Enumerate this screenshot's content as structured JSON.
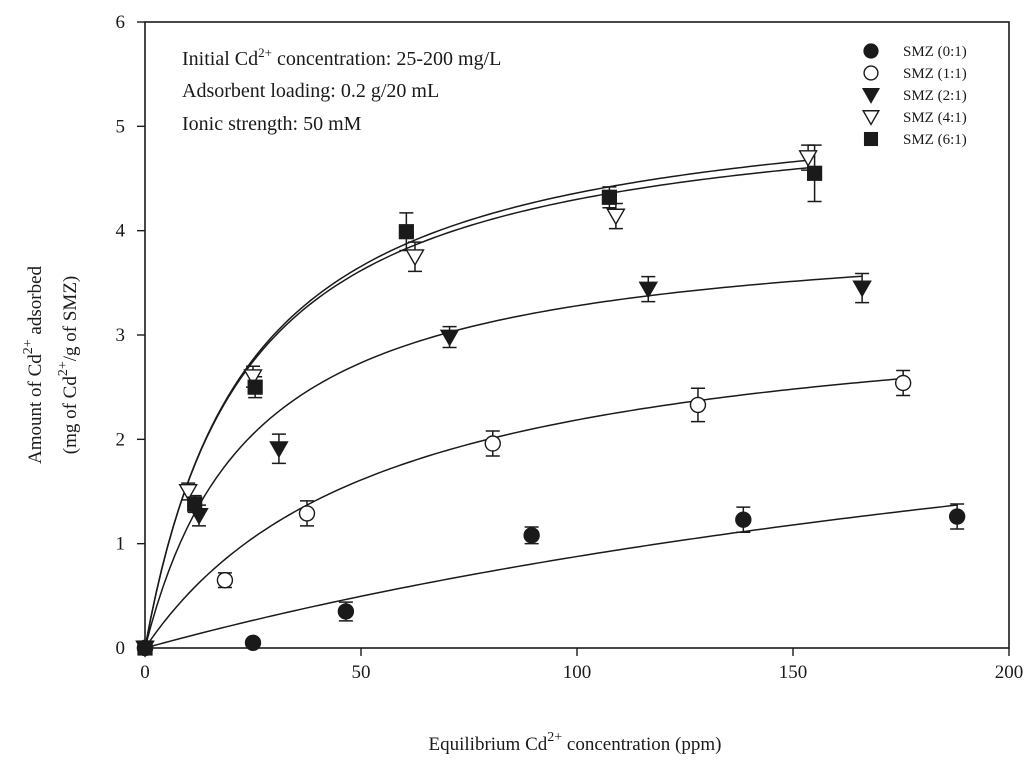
{
  "chart_data": {
    "type": "scatter",
    "xlabel": "Equilibrium Cd2+ concentration (ppm)",
    "ylabel_line1": "Amount of Cd2+ adsorbed",
    "ylabel_line2": "(mg of Cd2+/g of SMZ)",
    "xlim": [
      0,
      200
    ],
    "ylim": [
      0,
      6
    ],
    "x_ticks": [
      0,
      50,
      100,
      150,
      200
    ],
    "y_ticks": [
      0,
      1,
      2,
      3,
      4,
      5,
      6
    ],
    "grid": false,
    "legend_position": "top-right",
    "annotations": [
      "Initial Cd2+ concentration: 25-200 mg/L",
      "Adsorbent loading: 0.2 g/20 mL",
      "Ionic strength: 50 mM"
    ],
    "series": [
      {
        "name": "SMZ (0:1)",
        "marker": "filled-circle",
        "points": [
          {
            "x": 0,
            "y": 0,
            "err": 0
          },
          {
            "x": 25,
            "y": 0.05,
            "err": 0
          },
          {
            "x": 46.5,
            "y": 0.35,
            "err": 0.09
          },
          {
            "x": 89.5,
            "y": 1.08,
            "err": 0.08
          },
          {
            "x": 138.5,
            "y": 1.23,
            "err": 0.12
          },
          {
            "x": 188,
            "y": 1.26,
            "err": 0.12
          }
        ],
        "fit": {
          "qmax": 3.8,
          "K": 0.003,
          "xmax": 188
        }
      },
      {
        "name": "SMZ (1:1)",
        "marker": "open-circle",
        "points": [
          {
            "x": 0,
            "y": 0,
            "err": 0
          },
          {
            "x": 18.5,
            "y": 0.65,
            "err": 0.07
          },
          {
            "x": 37.5,
            "y": 1.29,
            "err": 0.12
          },
          {
            "x": 80.5,
            "y": 1.96,
            "err": 0.12
          },
          {
            "x": 128,
            "y": 2.33,
            "err": 0.16
          },
          {
            "x": 175.5,
            "y": 2.54,
            "err": 0.12
          }
        ],
        "fit": {
          "qmax": 3.4,
          "K": 0.018,
          "xmax": 175
        }
      },
      {
        "name": "SMZ (2:1)",
        "marker": "filled-triangle-down",
        "points": [
          {
            "x": 0,
            "y": 0,
            "err": 0
          },
          {
            "x": 12.5,
            "y": 1.27,
            "err": 0.1
          },
          {
            "x": 31,
            "y": 1.91,
            "err": 0.14
          },
          {
            "x": 70.5,
            "y": 2.98,
            "err": 0.1
          },
          {
            "x": 116.5,
            "y": 3.44,
            "err": 0.12
          },
          {
            "x": 166,
            "y": 3.45,
            "err": 0.14
          }
        ],
        "fit": {
          "qmax": 4.1,
          "K": 0.04,
          "xmax": 166
        }
      },
      {
        "name": "SMZ (4:1)",
        "marker": "open-triangle-down",
        "points": [
          {
            "x": 0,
            "y": 0,
            "err": 0
          },
          {
            "x": 10,
            "y": 1.5,
            "err": 0.08
          },
          {
            "x": 25,
            "y": 2.6,
            "err": 0.1
          },
          {
            "x": 62.5,
            "y": 3.75,
            "err": 0.14
          },
          {
            "x": 109,
            "y": 4.14,
            "err": 0.12
          },
          {
            "x": 153.5,
            "y": 4.7,
            "err": 0.12
          }
        ],
        "fit": {
          "qmax": 5.4,
          "K": 0.042,
          "xmax": 154
        }
      },
      {
        "name": "SMZ (6:1)",
        "marker": "filled-square",
        "points": [
          {
            "x": 0,
            "y": 0,
            "err": 0
          },
          {
            "x": 11.5,
            "y": 1.38,
            "err": 0.08
          },
          {
            "x": 25.5,
            "y": 2.5,
            "err": 0.1
          },
          {
            "x": 60.5,
            "y": 3.99,
            "err": 0.18
          },
          {
            "x": 107.5,
            "y": 4.32,
            "err": 0.1
          },
          {
            "x": 155,
            "y": 4.55,
            "err": 0.27
          }
        ],
        "fit": {
          "qmax": 5.3,
          "K": 0.043,
          "xmax": 156
        }
      }
    ]
  }
}
